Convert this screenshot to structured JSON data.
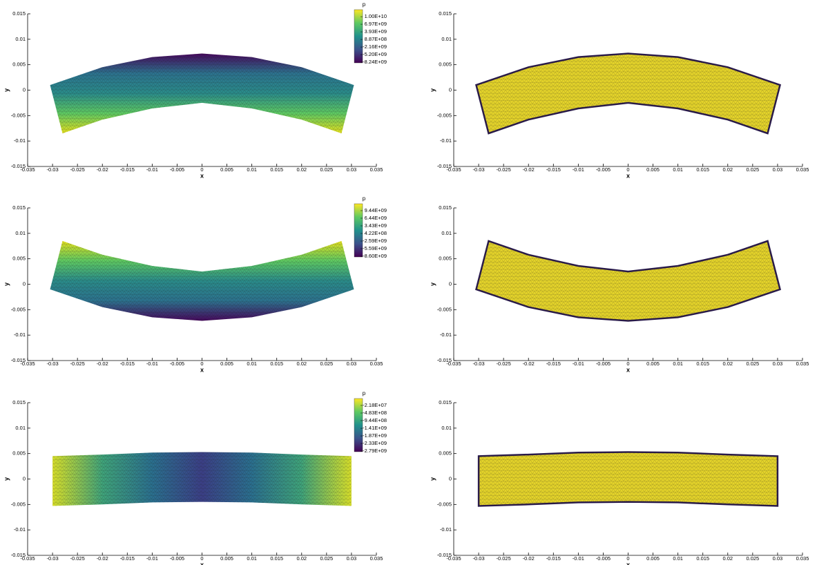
{
  "chart_data": [
    {
      "type": "contour",
      "xlabel": "x",
      "ylabel": "y",
      "xlim": [
        -0.035,
        0.035
      ],
      "ylim": [
        -0.015,
        0.015
      ],
      "xticks": [
        -0.035,
        -0.03,
        -0.025,
        -0.02,
        -0.015,
        -0.01,
        -0.005,
        0,
        0.005,
        0.01,
        0.015,
        0.02,
        0.025,
        0.03,
        0.035
      ],
      "yticks": [
        -0.015,
        -0.01,
        -0.005,
        0,
        0.005,
        0.01,
        0.015
      ],
      "top": {
        "x": [
          -0.0305,
          -0.02,
          -0.01,
          0,
          0.01,
          0.02,
          0.0305
        ],
        "y": [
          0.001,
          0.0045,
          0.0065,
          0.0072,
          0.0065,
          0.0045,
          0.001
        ]
      },
      "bottom": {
        "x": [
          -0.028,
          -0.02,
          -0.01,
          0,
          0.01,
          0.02,
          0.028
        ],
        "y": [
          -0.0085,
          -0.0058,
          -0.0036,
          -0.0025,
          -0.0036,
          -0.0058,
          -0.0085
        ]
      },
      "fill_colors": [
        "#46085c",
        "#2c728e",
        "#2a8c8a",
        "#5ec962",
        "#e3e01f"
      ],
      "fill_direction": "vertical",
      "colorbar": {
        "title": "p",
        "colormap": [
          "#440154",
          "#3b528b",
          "#21918c",
          "#5ec962",
          "#fde725"
        ],
        "clim": [
          -8500000000.0,
          12800000000.0
        ],
        "ticks": [
          {
            "value": 10000000000.0,
            "label": "1.00E+10"
          },
          {
            "value": 6970000000.0,
            "label": "6.97E+09"
          },
          {
            "value": 3930000000.0,
            "label": "3.93E+09"
          },
          {
            "value": 887000000.0,
            "label": "8.87E+08"
          },
          {
            "value": -2160000000.0,
            "label": "-2.16E+09"
          },
          {
            "value": -5200000000.0,
            "label": "-5.20E+09"
          },
          {
            "value": -8240000000.0,
            "label": "-8.24E+09"
          }
        ]
      }
    },
    {
      "type": "mesh",
      "xlabel": "x",
      "ylabel": "y",
      "xlim": [
        -0.035,
        0.035
      ],
      "ylim": [
        -0.015,
        0.015
      ],
      "xticks": [
        -0.035,
        -0.03,
        -0.025,
        -0.02,
        -0.015,
        -0.01,
        -0.005,
        0,
        0.005,
        0.01,
        0.015,
        0.02,
        0.025,
        0.03,
        0.035
      ],
      "yticks": [
        -0.015,
        -0.01,
        -0.005,
        0,
        0.005,
        0.01,
        0.015
      ],
      "top": {
        "x": [
          -0.0305,
          -0.02,
          -0.01,
          0,
          0.01,
          0.02,
          0.0305
        ],
        "y": [
          0.001,
          0.0045,
          0.0065,
          0.0072,
          0.0065,
          0.0045,
          0.001
        ]
      },
      "bottom": {
        "x": [
          -0.028,
          -0.02,
          -0.01,
          0,
          0.01,
          0.02,
          0.028
        ],
        "y": [
          -0.0085,
          -0.0058,
          -0.0036,
          -0.0025,
          -0.0036,
          -0.0058,
          -0.0085
        ]
      },
      "fill_colors": [
        "#e4d32a"
      ],
      "edge_color": "#2a1b4a"
    },
    {
      "type": "contour",
      "xlabel": "x",
      "ylabel": "y",
      "xlim": [
        -0.035,
        0.035
      ],
      "ylim": [
        -0.015,
        0.015
      ],
      "xticks": [
        -0.035,
        -0.03,
        -0.025,
        -0.02,
        -0.015,
        -0.01,
        -0.005,
        0,
        0.005,
        0.01,
        0.015,
        0.02,
        0.025,
        0.03,
        0.035
      ],
      "yticks": [
        -0.015,
        -0.01,
        -0.005,
        0,
        0.005,
        0.01,
        0.015
      ],
      "top": {
        "x": [
          -0.028,
          -0.02,
          -0.01,
          0,
          0.01,
          0.02,
          0.028
        ],
        "y": [
          0.0085,
          0.0058,
          0.0036,
          0.0025,
          0.0036,
          0.0058,
          0.0085
        ]
      },
      "bottom": {
        "x": [
          -0.0305,
          -0.02,
          -0.01,
          0,
          0.01,
          0.02,
          0.0305
        ],
        "y": [
          -0.001,
          -0.0045,
          -0.0065,
          -0.0072,
          -0.0065,
          -0.0045,
          -0.001
        ]
      },
      "fill_colors": [
        "#e3e01f",
        "#5ec962",
        "#2a8c8a",
        "#2c728e",
        "#46085c"
      ],
      "fill_direction": "vertical",
      "colorbar": {
        "title": "p",
        "colormap": [
          "#440154",
          "#3b528b",
          "#21918c",
          "#5ec962",
          "#fde725"
        ],
        "clim": [
          -8870000000.0,
          12170000000.0
        ],
        "ticks": [
          {
            "value": 9440000000.0,
            "label": "9.44E+09"
          },
          {
            "value": 6440000000.0,
            "label": "6.44E+09"
          },
          {
            "value": 3430000000.0,
            "label": "3.43E+09"
          },
          {
            "value": 422000000.0,
            "label": "4.22E+08"
          },
          {
            "value": -2590000000.0,
            "label": "-2.59E+09"
          },
          {
            "value": -5590000000.0,
            "label": "-5.59E+09"
          },
          {
            "value": -8600000000.0,
            "label": "-8.60E+09"
          }
        ]
      }
    },
    {
      "type": "mesh",
      "xlabel": "x",
      "ylabel": "y",
      "xlim": [
        -0.035,
        0.035
      ],
      "ylim": [
        -0.015,
        0.015
      ],
      "xticks": [
        -0.035,
        -0.03,
        -0.025,
        -0.02,
        -0.015,
        -0.01,
        -0.005,
        0,
        0.005,
        0.01,
        0.015,
        0.02,
        0.025,
        0.03,
        0.035
      ],
      "yticks": [
        -0.015,
        -0.01,
        -0.005,
        0,
        0.005,
        0.01,
        0.015
      ],
      "top": {
        "x": [
          -0.028,
          -0.02,
          -0.01,
          0,
          0.01,
          0.02,
          0.028
        ],
        "y": [
          0.0085,
          0.0058,
          0.0036,
          0.0025,
          0.0036,
          0.0058,
          0.0085
        ]
      },
      "bottom": {
        "x": [
          -0.0305,
          -0.02,
          -0.01,
          0,
          0.01,
          0.02,
          0.0305
        ],
        "y": [
          -0.001,
          -0.0045,
          -0.0065,
          -0.0072,
          -0.0065,
          -0.0045,
          -0.001
        ]
      },
      "fill_colors": [
        "#e4d32a"
      ],
      "edge_color": "#2a1b4a"
    },
    {
      "type": "contour",
      "xlabel": "x",
      "ylabel": "y",
      "xlim": [
        -0.035,
        0.035
      ],
      "ylim": [
        -0.015,
        0.015
      ],
      "xticks": [
        -0.035,
        -0.03,
        -0.025,
        -0.02,
        -0.015,
        -0.01,
        -0.005,
        0,
        0.005,
        0.01,
        0.015,
        0.02,
        0.025,
        0.03,
        0.035
      ],
      "yticks": [
        -0.015,
        -0.01,
        -0.005,
        0,
        0.005,
        0.01,
        0.015
      ],
      "top": {
        "x": [
          -0.03,
          -0.02,
          -0.01,
          0,
          0.01,
          0.02,
          0.03
        ],
        "y": [
          0.0045,
          0.0048,
          0.0052,
          0.0053,
          0.0052,
          0.0048,
          0.0045
        ]
      },
      "bottom": {
        "x": [
          -0.03,
          -0.02,
          -0.01,
          0,
          0.01,
          0.02,
          0.03
        ],
        "y": [
          -0.0053,
          -0.005,
          -0.0046,
          -0.0045,
          -0.0046,
          -0.005,
          -0.0053
        ]
      },
      "fill_colors": [
        "#d8e02a",
        "#3fa37a",
        "#2a6f8e",
        "#3b3f86",
        "#2a6f8e",
        "#3fa37a",
        "#d8e02a"
      ],
      "fill_direction": "horizontal",
      "colorbar": {
        "title": "p",
        "colormap": [
          "#440154",
          "#3b528b",
          "#21918c",
          "#5ec962",
          "#fde725"
        ],
        "clim": [
          -2830000000.0,
          397000000.0
        ],
        "ticks": [
          {
            "value": -21800000.0,
            "label": "-2.18E+07"
          },
          {
            "value": -483000000.0,
            "label": "-4.83E+08"
          },
          {
            "value": -944000000.0,
            "label": "-9.44E+08"
          },
          {
            "value": -1410000000.0,
            "label": "-1.41E+09"
          },
          {
            "value": -1870000000.0,
            "label": "-1.87E+09"
          },
          {
            "value": -2330000000.0,
            "label": "-2.33E+09"
          },
          {
            "value": -2790000000.0,
            "label": "-2.79E+09"
          }
        ]
      }
    },
    {
      "type": "mesh",
      "xlabel": "x",
      "ylabel": "y",
      "xlim": [
        -0.035,
        0.035
      ],
      "ylim": [
        -0.015,
        0.015
      ],
      "xticks": [
        -0.035,
        -0.03,
        -0.025,
        -0.02,
        -0.015,
        -0.01,
        -0.005,
        0,
        0.005,
        0.01,
        0.015,
        0.02,
        0.025,
        0.03,
        0.035
      ],
      "yticks": [
        -0.015,
        -0.01,
        -0.005,
        0,
        0.005,
        0.01,
        0.015
      ],
      "top": {
        "x": [
          -0.03,
          -0.02,
          -0.01,
          0,
          0.01,
          0.02,
          0.03
        ],
        "y": [
          0.0045,
          0.0048,
          0.0052,
          0.0053,
          0.0052,
          0.0048,
          0.0045
        ]
      },
      "bottom": {
        "x": [
          -0.03,
          -0.02,
          -0.01,
          0,
          0.01,
          0.02,
          0.03
        ],
        "y": [
          -0.0053,
          -0.005,
          -0.0046,
          -0.0045,
          -0.0046,
          -0.005,
          -0.0053
        ]
      },
      "fill_colors": [
        "#e4d32a"
      ],
      "edge_color": "#2a1b4a"
    }
  ]
}
